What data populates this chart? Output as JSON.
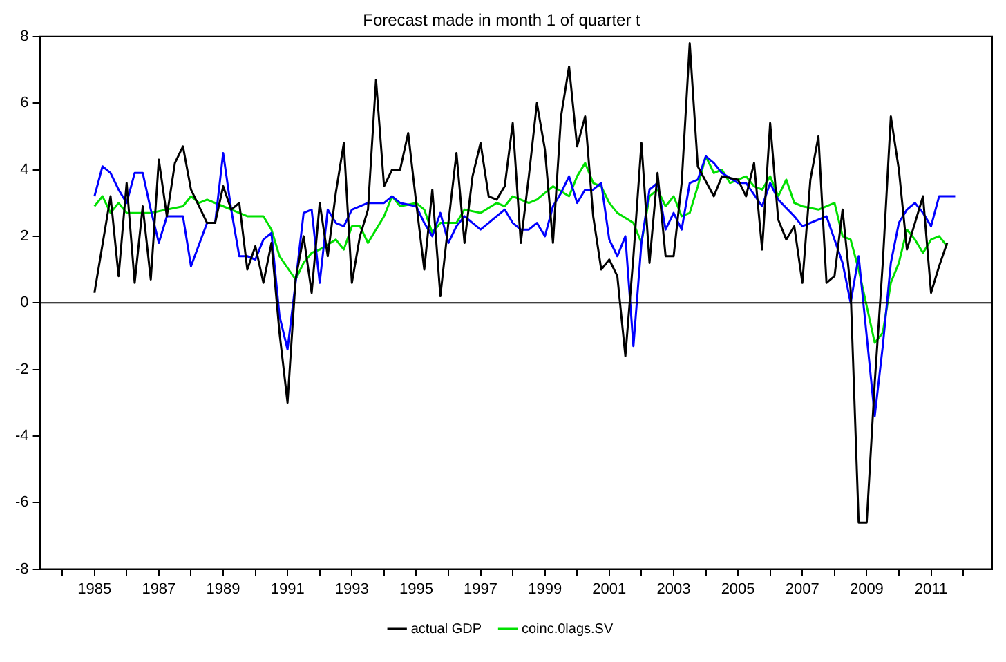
{
  "chart_data": {
    "type": "line",
    "title": "Forecast made in month 1 of quarter t",
    "xlim": [
      1983.3,
      2012.9
    ],
    "xticks": [
      {
        "value": 1984,
        "label": null
      },
      1985,
      {
        "value": 1986,
        "label": null
      },
      1987,
      {
        "value": 1988,
        "label": null
      },
      1989,
      {
        "value": 1990,
        "label": null
      },
      1991,
      {
        "value": 1992,
        "label": null
      },
      1993,
      {
        "value": 1994,
        "label": null
      },
      1995,
      {
        "value": 1996,
        "label": null
      },
      1997,
      {
        "value": 1998,
        "label": null
      },
      1999,
      {
        "value": 2000,
        "label": null
      },
      2001,
      {
        "value": 2002,
        "label": null
      },
      2003,
      {
        "value": 2004,
        "label": null
      },
      2005,
      {
        "value": 2006,
        "label": null
      },
      2007,
      {
        "value": 2008,
        "label": null
      },
      2009,
      {
        "value": 2010,
        "label": null
      },
      2011,
      {
        "value": 2012,
        "label": null
      }
    ],
    "ylim": [
      -8,
      8
    ],
    "yticks": [
      -8,
      -6,
      -4,
      -2,
      0,
      2,
      4,
      6,
      8
    ],
    "grid": false,
    "legend": "bottom",
    "marker": "none",
    "line_style": "solid",
    "ref_lines": [
      {
        "axis": "y",
        "value": 0,
        "color": "#000000"
      }
    ],
    "series": [
      {
        "name": "actual GDP",
        "color": "#000000",
        "x": [
          1985,
          1985.5,
          1985.75,
          1986,
          1986.25,
          1986.5,
          1986.75,
          1987,
          1987.25,
          1987.5,
          1987.75,
          1988,
          1988.5,
          1988.75,
          1989,
          1989.25,
          1989.5,
          1989.75,
          1990,
          1990.25,
          1990.5,
          1990.75,
          1991,
          1991.25,
          1991.5,
          1991.75,
          1992,
          1992.25,
          1992.5,
          1992.75,
          1993,
          1993.25,
          1993.5,
          1993.75,
          1994,
          1994.25,
          1994.5,
          1994.75,
          1995,
          1995.25,
          1995.5,
          1995.75,
          1996,
          1996.25,
          1996.5,
          1996.75,
          1997,
          1997.25,
          1997.5,
          1997.75,
          1998,
          1998.25,
          1998.5,
          1998.75,
          1999,
          1999.25,
          1999.5,
          1999.75,
          2000,
          2000.25,
          2000.5,
          2000.75,
          2001,
          2001.25,
          2001.5,
          2001.75,
          2002,
          2002.25,
          2002.5,
          2002.75,
          2003,
          2003.25,
          2003.5,
          2003.75,
          2004.25,
          2004.5,
          2005,
          2005.25,
          2005.5,
          2005.75,
          2006,
          2006.25,
          2006.5,
          2006.75,
          2007,
          2007.25,
          2007.5,
          2007.75,
          2008,
          2008.25,
          2008.5,
          2008.75,
          2009,
          2009.25,
          2009.5,
          2009.75,
          2010,
          2010.25,
          2010.5,
          2010.75,
          2011,
          2011.25,
          2011.5
        ],
        "values": [
          0.3,
          3.2,
          0.8,
          3.6,
          0.6,
          2.9,
          0.7,
          4.3,
          2.6,
          4.2,
          4.7,
          3.4,
          2.4,
          2.4,
          3.5,
          2.8,
          3.0,
          1.0,
          1.7,
          0.6,
          1.8,
          -0.9,
          -3.0,
          0.7,
          2.0,
          0.3,
          3.0,
          1.4,
          3.3,
          4.8,
          0.6,
          2.0,
          2.8,
          6.7,
          3.5,
          4.0,
          4.0,
          5.1,
          3.0,
          1.0,
          3.4,
          0.2,
          2.4,
          4.5,
          1.8,
          3.8,
          4.8,
          3.2,
          3.1,
          3.5,
          5.4,
          1.8,
          3.8,
          6.0,
          4.6,
          1.8,
          5.6,
          7.1,
          4.7,
          5.6,
          2.6,
          1.0,
          1.3,
          0.8,
          -1.6,
          1.4,
          4.8,
          1.2,
          3.9,
          1.4,
          1.4,
          3.6,
          7.8,
          4.1,
          3.2,
          3.8,
          3.7,
          3.2,
          4.2,
          1.6,
          5.4,
          2.5,
          1.9,
          2.3,
          0.6,
          3.7,
          5.0,
          0.6,
          0.8,
          2.8,
          0.4,
          -6.6,
          -6.6,
          -2.4,
          1.2,
          5.6,
          4.0,
          1.6,
          2.4,
          3.2,
          0.3,
          1.1,
          1.8
        ]
      },
      {
        "color": "#0000ff",
        "x": [
          1985,
          1985.25,
          1985.5,
          1985.75,
          1986,
          1986.25,
          1986.5,
          1986.75,
          1987,
          1987.25,
          1987.75,
          1988,
          1988.5,
          1988.75,
          1989,
          1989.25,
          1989.5,
          1989.75,
          1990,
          1990.25,
          1990.5,
          1990.75,
          1991,
          1991.25,
          1991.5,
          1991.75,
          1992,
          1992.25,
          1992.5,
          1992.75,
          1993,
          1993.5,
          1994,
          1994.25,
          1994.5,
          1995,
          1995.25,
          1995.5,
          1995.75,
          1996,
          1996.25,
          1996.5,
          1996.75,
          1997,
          1997.25,
          1997.5,
          1997.75,
          1998,
          1998.25,
          1998.5,
          1998.75,
          1999,
          1999.25,
          1999.5,
          1999.75,
          2000,
          2000.25,
          2000.5,
          2000.75,
          2001,
          2001.25,
          2001.5,
          2001.75,
          2002,
          2002.25,
          2002.5,
          2002.75,
          2003,
          2003.25,
          2003.5,
          2003.75,
          2004,
          2004.25,
          2004.5,
          2005,
          2005.25,
          2005.75,
          2006,
          2006.25,
          2006.75,
          2007,
          2007.75,
          2008,
          2008.25,
          2008.5,
          2008.75,
          2009,
          2009.25,
          2009.5,
          2009.75,
          2010,
          2010.25,
          2010.5,
          2010.75,
          2011,
          2011.25,
          2011.75
        ],
        "values": [
          3.2,
          4.1,
          3.9,
          3.4,
          3.0,
          3.9,
          3.9,
          2.8,
          1.8,
          2.6,
          2.6,
          1.1,
          2.4,
          2.4,
          4.5,
          2.8,
          1.4,
          1.4,
          1.3,
          1.9,
          2.1,
          -0.4,
          -1.4,
          0.6,
          2.7,
          2.8,
          0.6,
          2.8,
          2.4,
          2.3,
          2.8,
          3.0,
          3.0,
          3.2,
          3.0,
          2.9,
          2.4,
          2.0,
          2.7,
          1.8,
          2.3,
          2.6,
          2.4,
          2.2,
          2.4,
          2.6,
          2.8,
          2.4,
          2.2,
          2.2,
          2.4,
          2.0,
          2.9,
          3.3,
          3.8,
          3.0,
          3.4,
          3.4,
          3.6,
          1.9,
          1.4,
          2.0,
          -1.3,
          1.8,
          3.4,
          3.6,
          2.2,
          2.7,
          2.2,
          3.6,
          3.7,
          4.4,
          4.2,
          3.9,
          3.6,
          3.6,
          2.9,
          3.6,
          3.1,
          2.6,
          2.3,
          2.6,
          1.9,
          1.2,
          0.0,
          1.4,
          -1.0,
          -3.4,
          -1.3,
          1.2,
          2.4,
          2.8,
          3.0,
          2.7,
          2.3,
          3.2,
          3.2
        ]
      },
      {
        "name": "coinc.0lags.SV",
        "color": "#00e000",
        "x": [
          1985,
          1985.25,
          1985.5,
          1985.75,
          1986,
          1986.75,
          1987.25,
          1987.75,
          1988,
          1988.25,
          1988.5,
          1989,
          1989.5,
          1989.75,
          1990.25,
          1990.5,
          1990.75,
          1991.25,
          1991.5,
          1991.75,
          1992,
          1992.5,
          1992.75,
          1993,
          1993.25,
          1993.5,
          1993.75,
          1994,
          1994.25,
          1994.5,
          1995,
          1995.25,
          1995.5,
          1995.75,
          1996.25,
          1996.5,
          1997,
          1997.5,
          1997.75,
          1998,
          1998.5,
          1998.75,
          1999.25,
          1999.75,
          2000,
          2000.25,
          2000.5,
          2000.75,
          2001,
          2001.25,
          2001.75,
          2002,
          2002.25,
          2002.5,
          2002.75,
          2003,
          2003.25,
          2003.5,
          2003.75,
          2004,
          2004.25,
          2004.5,
          2004.75,
          2005.25,
          2005.5,
          2005.75,
          2006,
          2006.25,
          2006.5,
          2006.75,
          2007,
          2007.5,
          2008,
          2008.25,
          2008.5,
          2008.75,
          2009.25,
          2009.5,
          2009.75,
          2010,
          2010.25,
          2010.5,
          2010.75,
          2011,
          2011.25,
          2011.5
        ],
        "values": [
          2.9,
          3.2,
          2.7,
          3.0,
          2.7,
          2.7,
          2.8,
          2.9,
          3.2,
          3.0,
          3.1,
          2.9,
          2.7,
          2.6,
          2.6,
          2.2,
          1.4,
          0.7,
          1.2,
          1.5,
          1.6,
          1.9,
          1.6,
          2.3,
          2.3,
          1.8,
          2.2,
          2.6,
          3.2,
          2.9,
          3.0,
          2.8,
          2.1,
          2.4,
          2.4,
          2.8,
          2.7,
          3.0,
          2.9,
          3.2,
          3.0,
          3.1,
          3.5,
          3.2,
          3.8,
          4.2,
          3.6,
          3.5,
          3.0,
          2.7,
          2.4,
          1.8,
          3.2,
          3.4,
          2.9,
          3.2,
          2.6,
          2.7,
          3.5,
          4.4,
          3.9,
          4.0,
          3.6,
          3.8,
          3.5,
          3.4,
          3.8,
          3.2,
          3.7,
          3.0,
          2.9,
          2.8,
          3.0,
          2.0,
          1.9,
          1.0,
          -1.2,
          -0.9,
          0.6,
          1.2,
          2.2,
          1.9,
          1.5,
          1.9,
          2.0,
          1.7
        ]
      }
    ]
  }
}
